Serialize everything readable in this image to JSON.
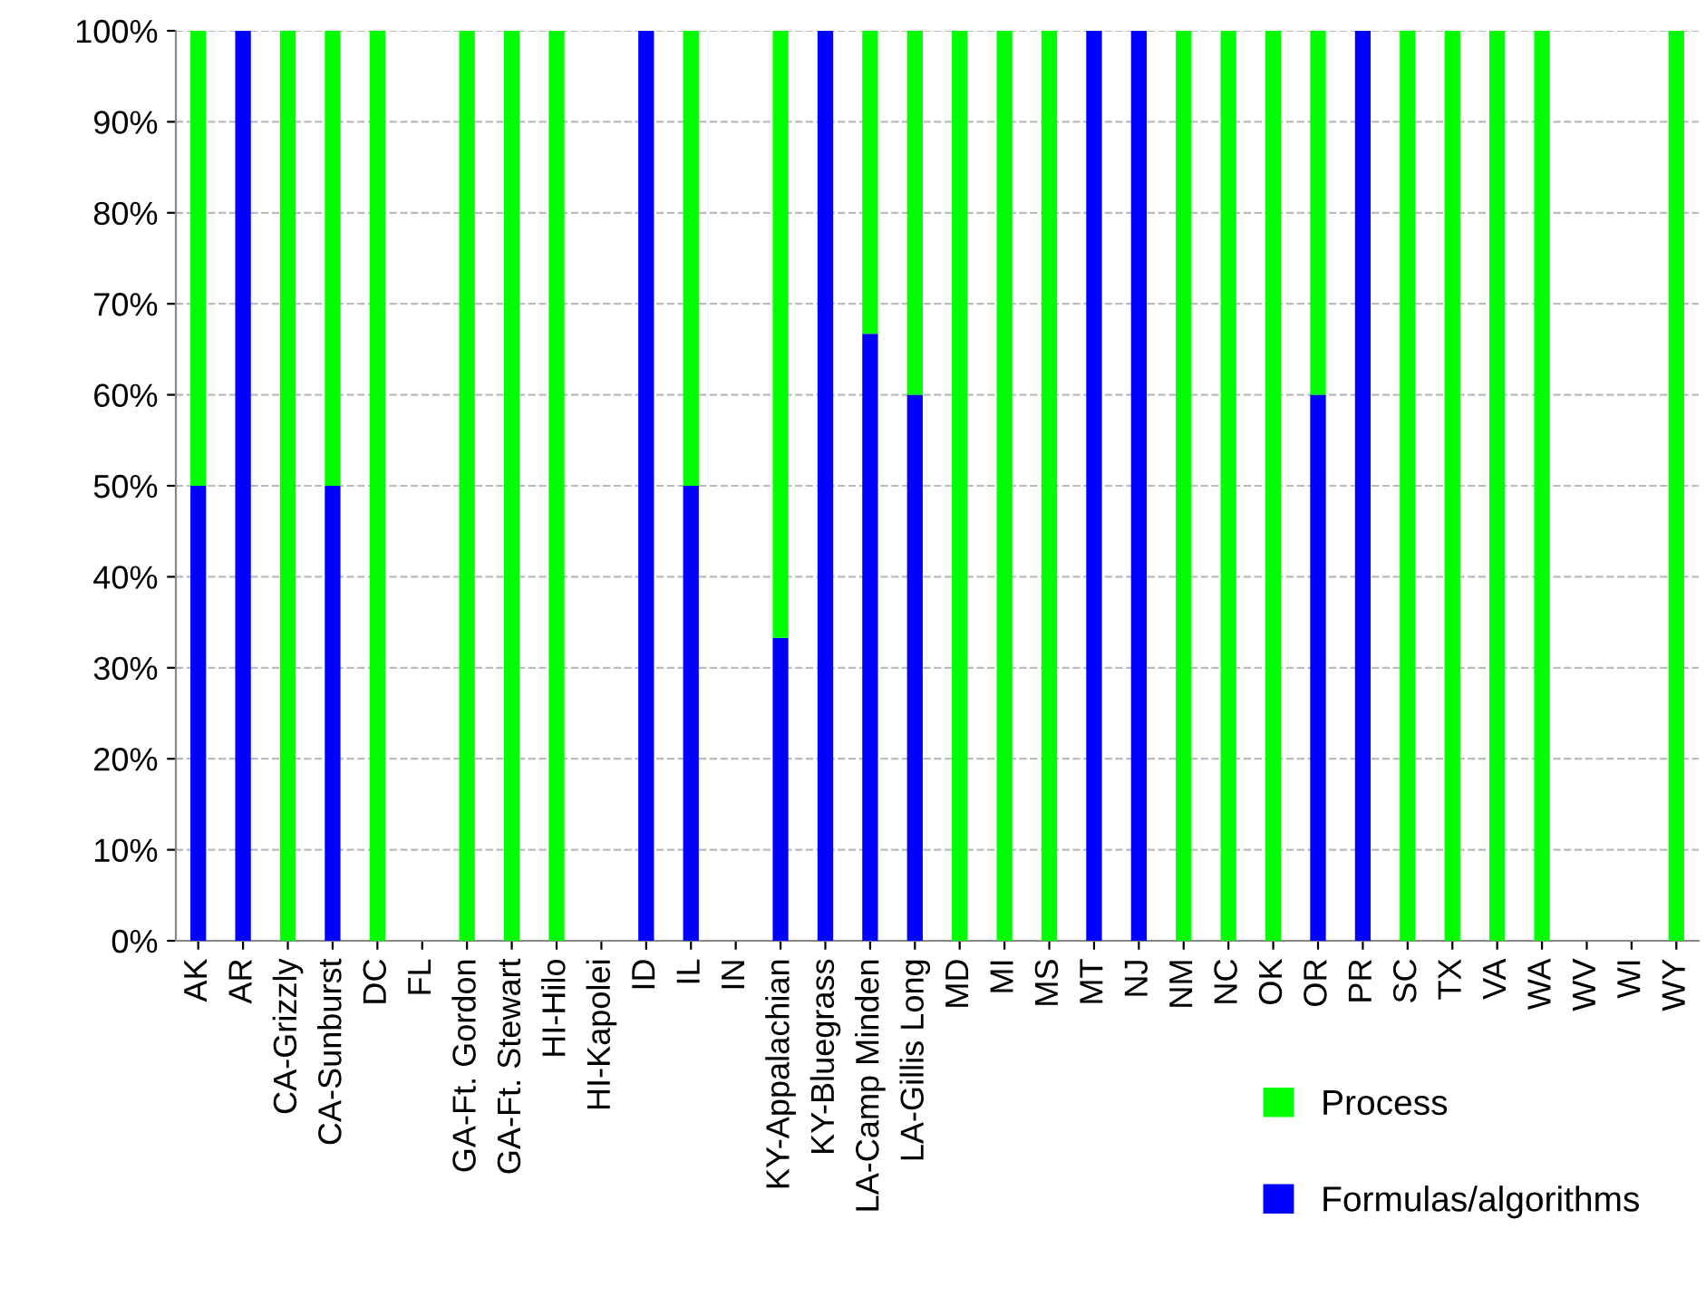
{
  "chart_data": {
    "type": "bar",
    "stacked": true,
    "categories": [
      "AK",
      "AR",
      "CA-Grizzly",
      "CA-Sunburst",
      "DC",
      "FL",
      "GA-Ft. Gordon",
      "GA-Ft. Stewart",
      "HI-Hilo",
      "HI-Kapolei",
      "ID",
      "IL",
      "IN",
      "KY-Appalachian",
      "KY-Bluegrass",
      "LA-Camp Minden",
      "LA-Gillis Long",
      "MD",
      "MI",
      "MS",
      "MT",
      "NJ",
      "NM",
      "NC",
      "OK",
      "OR",
      "PR",
      "SC",
      "TX",
      "VA",
      "WA",
      "WV",
      "WI",
      "WY"
    ],
    "series": [
      {
        "name": "Formulas/algorithms",
        "color": "#0000ff",
        "values": [
          50,
          100,
          0,
          50,
          0,
          0,
          0,
          0,
          0,
          0,
          100,
          50,
          0,
          33.3,
          100,
          66.7,
          60,
          0,
          0,
          0,
          100,
          100,
          0,
          0,
          0,
          60,
          100,
          0,
          0,
          0,
          0,
          0,
          0,
          0
        ]
      },
      {
        "name": "Process",
        "color": "#00ff00",
        "values": [
          50,
          0,
          100,
          50,
          100,
          0,
          100,
          100,
          100,
          0,
          0,
          50,
          0,
          66.7,
          0,
          33.3,
          40,
          100,
          100,
          100,
          0,
          0,
          100,
          100,
          100,
          40,
          0,
          100,
          100,
          100,
          100,
          0,
          0,
          100
        ]
      }
    ],
    "ylim": [
      0,
      100
    ],
    "yticks": [
      {
        "value": 0,
        "label": "0%"
      },
      {
        "value": 10,
        "label": "10%"
      },
      {
        "value": 20,
        "label": "20%"
      },
      {
        "value": 30,
        "label": "30%"
      },
      {
        "value": 40,
        "label": "40%"
      },
      {
        "value": 50,
        "label": "50%"
      },
      {
        "value": 60,
        "label": "60%"
      },
      {
        "value": 70,
        "label": "70%"
      },
      {
        "value": 80,
        "label": "80%"
      },
      {
        "value": 90,
        "label": "90%"
      },
      {
        "value": 100,
        "label": "100%"
      }
    ],
    "grid": "y",
    "legend": "bottom right"
  }
}
